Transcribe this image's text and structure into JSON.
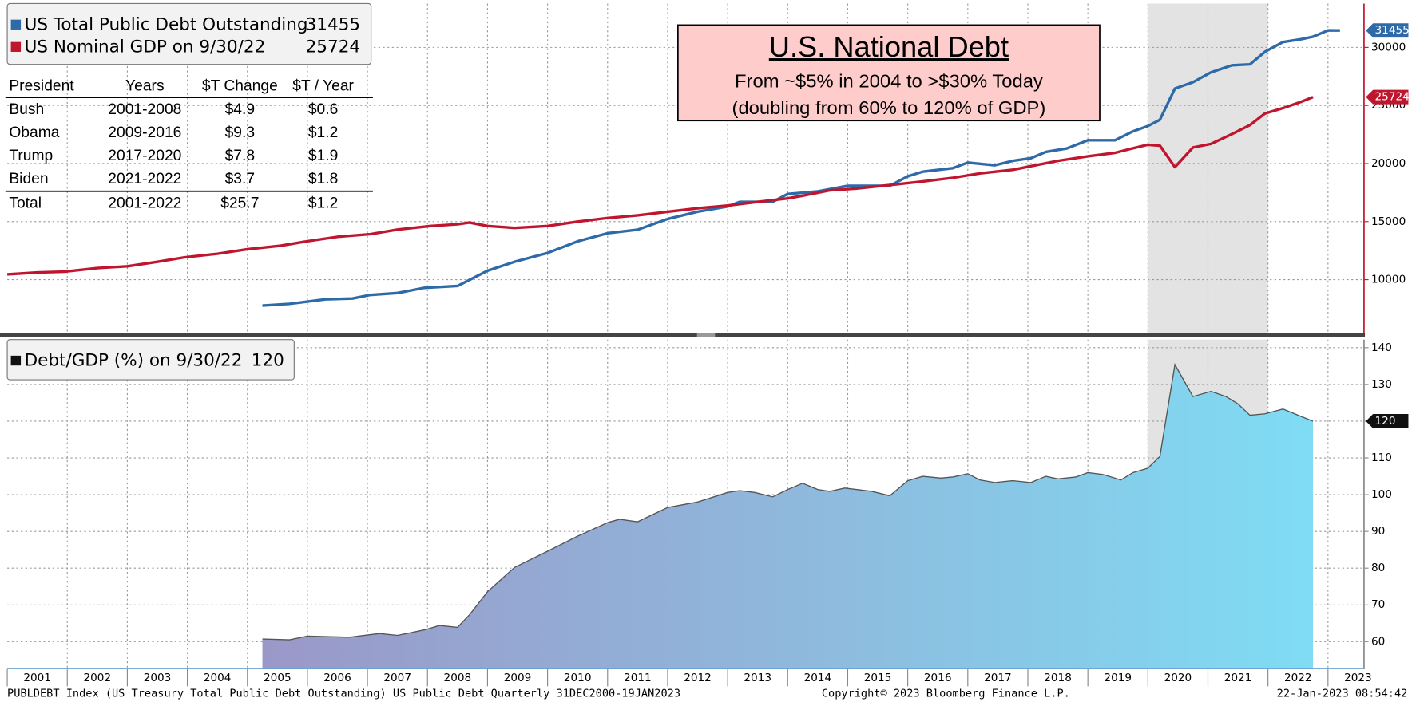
{
  "chart_data": [
    {
      "type": "line",
      "title": "U.S. National Debt",
      "subtitle": [
        "From ~$5% in 2004 to >$30% Today",
        "(doubling from 60% to 120% of GDP)"
      ],
      "xlim": [
        2001,
        2023.6
      ],
      "xticks": [
        2001,
        2002,
        2003,
        2004,
        2005,
        2006,
        2007,
        2008,
        2009,
        2010,
        2011,
        2012,
        2013,
        2014,
        2015,
        2016,
        2017,
        2018,
        2019,
        2020,
        2021,
        2022,
        2023
      ],
      "ylim": [
        5380,
        33770
      ],
      "yticks": [
        10000,
        15000,
        20000,
        25000,
        30000
      ],
      "grid": true,
      "shade": [
        2020,
        2022
      ],
      "axis_color": "#c0152f",
      "series": [
        {
          "name": "US Total Public Debt Outstanding",
          "color": "#2e6aa8",
          "x": [
            2005.25,
            2005.7,
            2006.3,
            2006.75,
            2007.05,
            2007.5,
            2007.95,
            2008.5,
            2009.0,
            2009.45,
            2010.0,
            2010.5,
            2011.0,
            2011.5,
            2012.0,
            2012.5,
            2013.0,
            2013.2,
            2013.75,
            2014.0,
            2014.5,
            2015.0,
            2015.7,
            2016.0,
            2016.25,
            2016.75,
            2017.0,
            2017.45,
            2017.75,
            2018.05,
            2018.3,
            2018.65,
            2019.0,
            2019.45,
            2019.75,
            2020.0,
            2020.2,
            2020.45,
            2020.75,
            2021.05,
            2021.4,
            2021.7,
            2021.95,
            2022.25,
            2022.55,
            2022.75,
            2023.0,
            2023.2
          ],
          "values": [
            7770,
            7920,
            8310,
            8380,
            8690,
            8850,
            9300,
            9460,
            10770,
            11540,
            12300,
            13300,
            14000,
            14300,
            15230,
            15850,
            16300,
            16700,
            16700,
            17380,
            17600,
            18080,
            18080,
            18900,
            19300,
            19600,
            20080,
            19850,
            20230,
            20460,
            21000,
            21300,
            22000,
            22000,
            22770,
            23230,
            23770,
            26460,
            27000,
            27850,
            28460,
            28540,
            29620,
            30460,
            30700,
            30920,
            31460,
            31455
          ]
        },
        {
          "name": "US Nominal GDP on 9/30/22",
          "color": "#c0152f",
          "x": [
            2001.0,
            2001.5,
            2001.95,
            2002.5,
            2003.0,
            2003.5,
            2003.95,
            2004.5,
            2005.0,
            2005.55,
            2006.0,
            2006.5,
            2007.05,
            2007.5,
            2008.05,
            2008.5,
            2008.7,
            2009.0,
            2009.45,
            2010.0,
            2010.5,
            2011.0,
            2011.5,
            2012.0,
            2012.5,
            2013.0,
            2013.5,
            2014.0,
            2014.25,
            2014.7,
            2015.15,
            2015.7,
            2016.25,
            2016.75,
            2017.2,
            2017.75,
            2018.05,
            2018.5,
            2019.0,
            2019.45,
            2019.75,
            2020.0,
            2020.2,
            2020.45,
            2020.75,
            2021.05,
            2021.4,
            2021.7,
            2021.95,
            2022.25,
            2022.55,
            2022.75
          ],
          "values": [
            10460,
            10620,
            10690,
            11000,
            11150,
            11540,
            11920,
            12230,
            12620,
            12920,
            13310,
            13690,
            13920,
            14310,
            14620,
            14770,
            14920,
            14620,
            14460,
            14620,
            15000,
            15310,
            15540,
            15850,
            16150,
            16380,
            16700,
            17000,
            17230,
            17690,
            17850,
            18150,
            18460,
            18770,
            19150,
            19460,
            19770,
            20230,
            20620,
            20920,
            21310,
            21620,
            21540,
            19690,
            21380,
            21690,
            22540,
            23310,
            24310,
            24770,
            25310,
            25724
          ]
        }
      ],
      "table": {
        "header": [
          "President",
          "Years",
          "$T Change",
          "$T / Year"
        ],
        "rows": [
          [
            "Bush",
            "2001-2008",
            "$4.9",
            "$0.6"
          ],
          [
            "Obama",
            "2009-2016",
            "$9.3",
            "$1.2"
          ],
          [
            "Trump",
            "2017-2020",
            "$7.8",
            "$1.9"
          ],
          [
            "Biden",
            "2021-2022",
            "$3.7",
            "$1.8"
          ]
        ],
        "total": [
          "Total",
          "2001-2022",
          "$25.7",
          "$1.2"
        ]
      }
    },
    {
      "type": "area",
      "xlim": [
        2001,
        2023.6
      ],
      "xticks": [
        2001,
        2002,
        2003,
        2004,
        2005,
        2006,
        2007,
        2008,
        2009,
        2010,
        2011,
        2012,
        2013,
        2014,
        2015,
        2016,
        2017,
        2018,
        2019,
        2020,
        2021,
        2022,
        2023
      ],
      "ylim": [
        52.7,
        142.2
      ],
      "yticks": [
        60,
        70,
        80,
        90,
        100,
        110,
        120,
        130,
        140
      ],
      "grid": true,
      "shade": [
        2020,
        2022
      ],
      "axis_color": "#888888",
      "series": [
        {
          "name": "Debt/GDP (%) on 9/30/22",
          "color": "#555555",
          "x": [
            2005.25,
            2005.7,
            2006.0,
            2006.7,
            2007.2,
            2007.5,
            2007.95,
            2008.2,
            2008.5,
            2008.7,
            2009.0,
            2009.45,
            2010.0,
            2010.5,
            2011.0,
            2011.2,
            2011.5,
            2012.0,
            2012.5,
            2013.0,
            2013.2,
            2013.45,
            2013.75,
            2014.0,
            2014.25,
            2014.5,
            2014.7,
            2014.95,
            2015.4,
            2015.7,
            2016.0,
            2016.25,
            2016.55,
            2016.75,
            2017.0,
            2017.2,
            2017.45,
            2017.75,
            2018.05,
            2018.3,
            2018.5,
            2018.8,
            2019.0,
            2019.25,
            2019.55,
            2019.75,
            2020.0,
            2020.2,
            2020.45,
            2020.75,
            2021.05,
            2021.3,
            2021.5,
            2021.7,
            2021.95,
            2022.25,
            2022.55,
            2022.75
          ],
          "values": [
            60.7,
            60.5,
            61.5,
            61.2,
            62.2,
            61.7,
            63.2,
            64.4,
            63.9,
            67.3,
            73.6,
            80.2,
            84.6,
            88.7,
            92.4,
            93.3,
            92.6,
            96.5,
            98.0,
            100.6,
            101.1,
            100.6,
            99.4,
            101.4,
            103.1,
            101.4,
            100.9,
            101.8,
            100.9,
            99.7,
            103.8,
            105.0,
            104.5,
            104.8,
            105.7,
            104.0,
            103.3,
            103.8,
            103.3,
            105.0,
            104.3,
            104.8,
            106.0,
            105.5,
            104.0,
            106.0,
            107.2,
            110.4,
            135.4,
            126.7,
            128.1,
            126.7,
            124.7,
            121.6,
            122.0,
            123.3,
            121.3,
            120
          ]
        }
      ]
    }
  ],
  "footer": {
    "left": "PUBLDEBT Index (US Treasury Total Public Debt Outstanding) US Public Debt  Quarterly 31DEC2000-19JAN2023",
    "center": "Copyright© 2023 Bloomberg Finance L.P.",
    "right": "22-Jan-2023 08:54:42"
  }
}
